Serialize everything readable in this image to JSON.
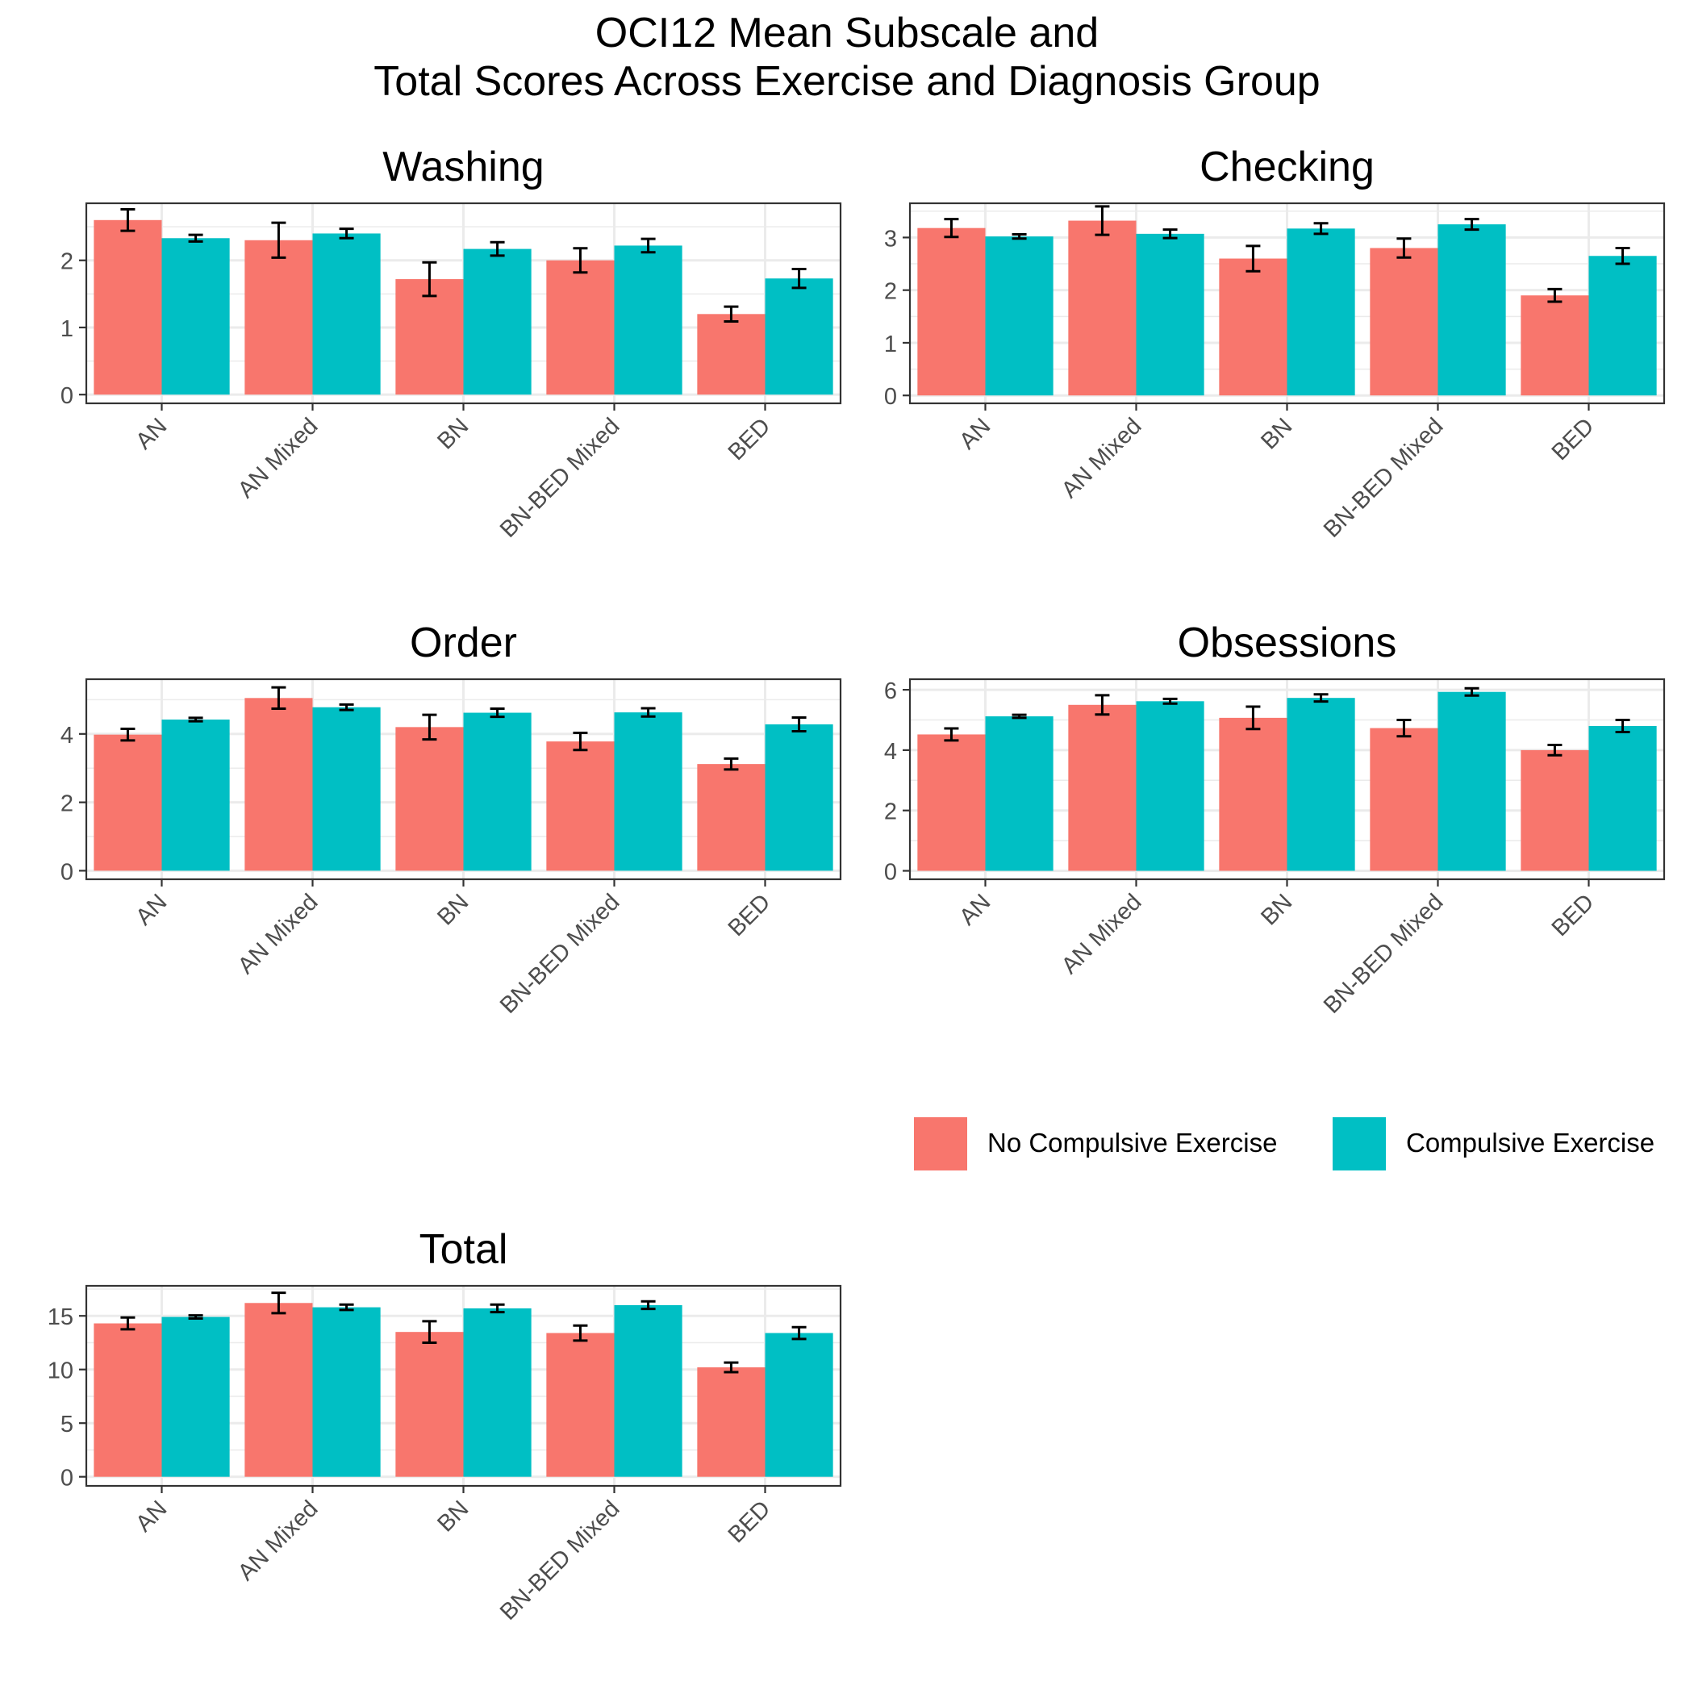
{
  "title_line1": "OCI12 Mean Subscale and",
  "title_line2": "Total Scores Across Exercise and Diagnosis Group",
  "legend": {
    "items": [
      {
        "label": "No Compulsive Exercise",
        "color": "#F8766D"
      },
      {
        "label": "Compulsive Exercise",
        "color": "#00BFC4"
      }
    ]
  },
  "colors": {
    "no_compulsive": "#F8766D",
    "compulsive": "#00BFC4",
    "grid": "#EBEBEB",
    "panel_border": "#333333"
  },
  "chart_data": [
    {
      "type": "bar",
      "title": "Washing",
      "categories": [
        "AN",
        "AN Mixed",
        "BN",
        "BN-BED Mixed",
        "BED"
      ],
      "ylim": [
        -0.13,
        2.85
      ],
      "yticks": [
        0,
        1,
        2
      ],
      "series": [
        {
          "name": "No Compulsive Exercise",
          "values": [
            2.6,
            2.3,
            1.72,
            2.0,
            1.2
          ],
          "err": [
            0.16,
            0.26,
            0.25,
            0.18,
            0.11
          ]
        },
        {
          "name": "Compulsive Exercise",
          "values": [
            2.33,
            2.4,
            2.17,
            2.22,
            1.73
          ],
          "err": [
            0.05,
            0.07,
            0.1,
            0.1,
            0.14
          ]
        }
      ]
    },
    {
      "type": "bar",
      "title": "Checking",
      "categories": [
        "AN",
        "AN Mixed",
        "BN",
        "BN-BED Mixed",
        "BED"
      ],
      "ylim": [
        -0.15,
        3.65
      ],
      "yticks": [
        0,
        1,
        2,
        3
      ],
      "series": [
        {
          "name": "No Compulsive Exercise",
          "values": [
            3.18,
            3.32,
            2.6,
            2.8,
            1.9
          ],
          "err": [
            0.17,
            0.27,
            0.24,
            0.18,
            0.12
          ]
        },
        {
          "name": "Compulsive Exercise",
          "values": [
            3.02,
            3.07,
            3.17,
            3.25,
            2.65
          ],
          "err": [
            0.04,
            0.08,
            0.1,
            0.1,
            0.15
          ]
        }
      ]
    },
    {
      "type": "bar",
      "title": "Order",
      "categories": [
        "AN",
        "AN Mixed",
        "BN",
        "BN-BED Mixed",
        "BED"
      ],
      "ylim": [
        -0.25,
        5.6
      ],
      "yticks": [
        0,
        2,
        4
      ],
      "series": [
        {
          "name": "No Compulsive Exercise",
          "values": [
            3.98,
            5.05,
            4.2,
            3.78,
            3.12
          ],
          "err": [
            0.17,
            0.31,
            0.36,
            0.25,
            0.16
          ]
        },
        {
          "name": "Compulsive Exercise",
          "values": [
            4.42,
            4.78,
            4.62,
            4.63,
            4.28
          ],
          "err": [
            0.05,
            0.08,
            0.12,
            0.12,
            0.2
          ]
        }
      ]
    },
    {
      "type": "bar",
      "title": "Obsessions",
      "categories": [
        "AN",
        "AN Mixed",
        "BN",
        "BN-BED Mixed",
        "BED"
      ],
      "ylim": [
        -0.28,
        6.35
      ],
      "yticks": [
        0,
        2,
        4,
        6
      ],
      "series": [
        {
          "name": "No Compulsive Exercise",
          "values": [
            4.52,
            5.5,
            5.07,
            4.73,
            4.0
          ],
          "err": [
            0.2,
            0.32,
            0.37,
            0.27,
            0.17
          ]
        },
        {
          "name": "Compulsive Exercise",
          "values": [
            5.12,
            5.62,
            5.73,
            5.93,
            4.8
          ],
          "err": [
            0.05,
            0.08,
            0.12,
            0.12,
            0.2
          ]
        }
      ]
    },
    {
      "type": "bar",
      "title": "Total",
      "categories": [
        "AN",
        "AN Mixed",
        "BN",
        "BN-BED Mixed",
        "BED"
      ],
      "ylim": [
        -0.85,
        17.8
      ],
      "yticks": [
        0,
        5,
        10,
        15
      ],
      "series": [
        {
          "name": "No Compulsive Exercise",
          "values": [
            14.3,
            16.2,
            13.5,
            13.4,
            10.2
          ],
          "err": [
            0.55,
            0.95,
            1.0,
            0.7,
            0.45
          ]
        },
        {
          "name": "Compulsive Exercise",
          "values": [
            14.9,
            15.8,
            15.7,
            16.0,
            13.4
          ],
          "err": [
            0.15,
            0.25,
            0.35,
            0.35,
            0.55
          ]
        }
      ]
    }
  ]
}
